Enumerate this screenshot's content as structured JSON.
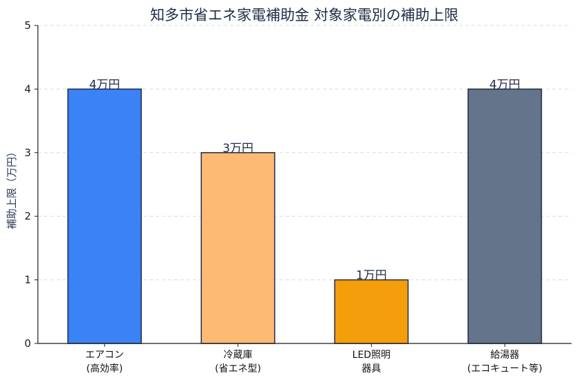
{
  "chart_data": {
    "type": "bar",
    "title": "知多市省エネ家電補助金 対象家電別の補助上限",
    "xlabel": "",
    "ylabel": "補助上限（万円）",
    "ylim": [
      0,
      5
    ],
    "yticks": [
      "0",
      "1",
      "2",
      "3",
      "4",
      "5"
    ],
    "grid": "horizontal dashed",
    "categories": [
      [
        "エアコン",
        "(高効率)"
      ],
      [
        "冷蔵庫",
        "(省エネ型)"
      ],
      [
        "LED照明",
        "器具"
      ],
      [
        "給湯器",
        "(エコキュート等)"
      ]
    ],
    "values": [
      4,
      3,
      1,
      4
    ],
    "data_labels": [
      "4万円",
      "3万円",
      "1万円",
      "4万円"
    ],
    "colors": [
      "#3b82f6",
      "#fdba74",
      "#f59e0b",
      "#64748b"
    ],
    "edge_color": "#1e2b45"
  }
}
